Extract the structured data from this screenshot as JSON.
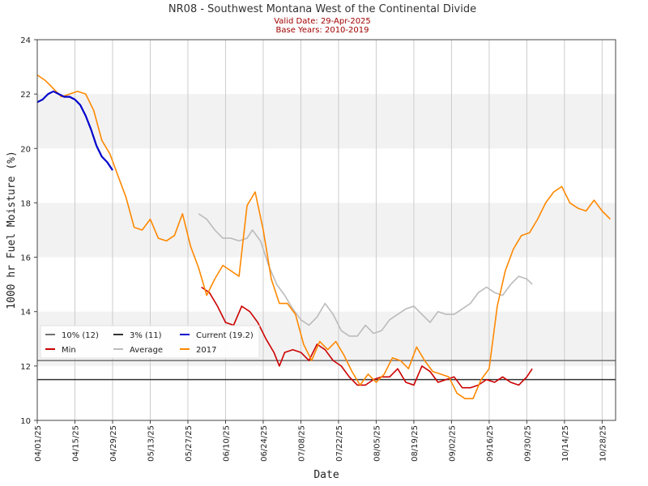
{
  "chart_data": {
    "type": "line",
    "title": "NR08 - Southwest Montana West of the Continental Divide",
    "subtitle_lines": [
      "Valid Date: 29-Apr-2025",
      "Base Years: 2010-2019"
    ],
    "xlabel": "Date",
    "ylabel": "1000 hr Fuel Moisture (%)",
    "xlim": [
      "2025-04-01",
      "2025-11-02"
    ],
    "ylim": [
      10,
      24
    ],
    "yticks": [
      10,
      12,
      14,
      16,
      18,
      20,
      22,
      24
    ],
    "xtick_labels": [
      "04/01/25",
      "04/15/25",
      "04/29/25",
      "05/13/25",
      "05/27/25",
      "06/10/25",
      "06/24/25",
      "07/08/25",
      "07/22/25",
      "08/05/25",
      "08/19/25",
      "09/02/25",
      "09/16/25",
      "09/30/25",
      "10/14/25",
      "10/28/25"
    ],
    "grid": true,
    "legend_position": "lower-left",
    "reference_lines": [
      {
        "name": "10% (12)",
        "value": 12.2,
        "color": "#707070"
      },
      {
        "name": "3% (11)",
        "value": 11.5,
        "color": "#333333"
      }
    ],
    "series": [
      {
        "name": "Current (19.2)",
        "color": "#0000cc",
        "points": [
          [
            "2025-04-01",
            21.7
          ],
          [
            "2025-04-03",
            21.8
          ],
          [
            "2025-04-05",
            22.0
          ],
          [
            "2025-04-07",
            22.1
          ],
          [
            "2025-04-09",
            22.0
          ],
          [
            "2025-04-11",
            21.9
          ],
          [
            "2025-04-13",
            21.9
          ],
          [
            "2025-04-15",
            21.8
          ],
          [
            "2025-04-17",
            21.6
          ],
          [
            "2025-04-19",
            21.2
          ],
          [
            "2025-04-21",
            20.7
          ],
          [
            "2025-04-23",
            20.1
          ],
          [
            "2025-04-25",
            19.7
          ],
          [
            "2025-04-27",
            19.5
          ],
          [
            "2025-04-29",
            19.2
          ]
        ]
      },
      {
        "name": "Min",
        "color": "#cc0000",
        "points": [
          [
            "2025-06-01",
            14.9
          ],
          [
            "2025-06-04",
            14.7
          ],
          [
            "2025-06-07",
            14.2
          ],
          [
            "2025-06-10",
            13.6
          ],
          [
            "2025-06-13",
            13.5
          ],
          [
            "2025-06-16",
            14.2
          ],
          [
            "2025-06-19",
            14.0
          ],
          [
            "2025-06-22",
            13.6
          ],
          [
            "2025-06-25",
            13.0
          ],
          [
            "2025-06-28",
            12.5
          ],
          [
            "2025-06-30",
            12.0
          ],
          [
            "2025-07-02",
            12.5
          ],
          [
            "2025-07-05",
            12.6
          ],
          [
            "2025-07-08",
            12.5
          ],
          [
            "2025-07-11",
            12.2
          ],
          [
            "2025-07-14",
            12.8
          ],
          [
            "2025-07-17",
            12.6
          ],
          [
            "2025-07-20",
            12.2
          ],
          [
            "2025-07-23",
            12.0
          ],
          [
            "2025-07-26",
            11.6
          ],
          [
            "2025-07-29",
            11.3
          ],
          [
            "2025-08-01",
            11.3
          ],
          [
            "2025-08-04",
            11.5
          ],
          [
            "2025-08-07",
            11.6
          ],
          [
            "2025-08-10",
            11.6
          ],
          [
            "2025-08-13",
            11.9
          ],
          [
            "2025-08-16",
            11.4
          ],
          [
            "2025-08-19",
            11.3
          ],
          [
            "2025-08-22",
            12.0
          ],
          [
            "2025-08-25",
            11.8
          ],
          [
            "2025-08-28",
            11.4
          ],
          [
            "2025-08-31",
            11.5
          ],
          [
            "2025-09-03",
            11.6
          ],
          [
            "2025-09-06",
            11.2
          ],
          [
            "2025-09-09",
            11.2
          ],
          [
            "2025-09-12",
            11.3
          ],
          [
            "2025-09-15",
            11.5
          ],
          [
            "2025-09-18",
            11.4
          ],
          [
            "2025-09-21",
            11.6
          ],
          [
            "2025-09-24",
            11.4
          ],
          [
            "2025-09-27",
            11.3
          ],
          [
            "2025-09-30",
            11.6
          ],
          [
            "2025-10-02",
            11.9
          ]
        ]
      },
      {
        "name": "Average",
        "color": "#bbbbbb",
        "points": [
          [
            "2025-05-31",
            17.6
          ],
          [
            "2025-06-03",
            17.4
          ],
          [
            "2025-06-06",
            17.0
          ],
          [
            "2025-06-09",
            16.7
          ],
          [
            "2025-06-12",
            16.7
          ],
          [
            "2025-06-15",
            16.6
          ],
          [
            "2025-06-18",
            16.7
          ],
          [
            "2025-06-20",
            17.0
          ],
          [
            "2025-06-23",
            16.6
          ],
          [
            "2025-06-26",
            15.7
          ],
          [
            "2025-06-29",
            15.0
          ],
          [
            "2025-07-02",
            14.6
          ],
          [
            "2025-07-05",
            14.1
          ],
          [
            "2025-07-08",
            13.7
          ],
          [
            "2025-07-11",
            13.5
          ],
          [
            "2025-07-14",
            13.8
          ],
          [
            "2025-07-17",
            14.3
          ],
          [
            "2025-07-20",
            13.9
          ],
          [
            "2025-07-23",
            13.3
          ],
          [
            "2025-07-26",
            13.1
          ],
          [
            "2025-07-29",
            13.1
          ],
          [
            "2025-08-01",
            13.5
          ],
          [
            "2025-08-04",
            13.2
          ],
          [
            "2025-08-07",
            13.3
          ],
          [
            "2025-08-10",
            13.7
          ],
          [
            "2025-08-13",
            13.9
          ],
          [
            "2025-08-16",
            14.1
          ],
          [
            "2025-08-19",
            14.2
          ],
          [
            "2025-08-22",
            13.9
          ],
          [
            "2025-08-25",
            13.6
          ],
          [
            "2025-08-28",
            14.0
          ],
          [
            "2025-08-31",
            13.9
          ],
          [
            "2025-09-03",
            13.9
          ],
          [
            "2025-09-06",
            14.1
          ],
          [
            "2025-09-09",
            14.3
          ],
          [
            "2025-09-12",
            14.7
          ],
          [
            "2025-09-15",
            14.9
          ],
          [
            "2025-09-18",
            14.7
          ],
          [
            "2025-09-21",
            14.6
          ],
          [
            "2025-09-24",
            15.0
          ],
          [
            "2025-09-27",
            15.3
          ],
          [
            "2025-09-30",
            15.2
          ],
          [
            "2025-10-02",
            15.0
          ]
        ]
      },
      {
        "name": "2017",
        "color": "#ff8800",
        "points": [
          [
            "2025-04-01",
            22.7
          ],
          [
            "2025-04-04",
            22.5
          ],
          [
            "2025-04-07",
            22.2
          ],
          [
            "2025-04-10",
            21.9
          ],
          [
            "2025-04-13",
            22.0
          ],
          [
            "2025-04-16",
            22.1
          ],
          [
            "2025-04-19",
            22.0
          ],
          [
            "2025-04-22",
            21.4
          ],
          [
            "2025-04-25",
            20.3
          ],
          [
            "2025-04-28",
            19.8
          ],
          [
            "2025-05-01",
            19.0
          ],
          [
            "2025-05-04",
            18.2
          ],
          [
            "2025-05-07",
            17.1
          ],
          [
            "2025-05-10",
            17.0
          ],
          [
            "2025-05-13",
            17.4
          ],
          [
            "2025-05-16",
            16.7
          ],
          [
            "2025-05-19",
            16.6
          ],
          [
            "2025-05-22",
            16.8
          ],
          [
            "2025-05-25",
            17.6
          ],
          [
            "2025-05-28",
            16.4
          ],
          [
            "2025-05-31",
            15.6
          ],
          [
            "2025-06-03",
            14.6
          ],
          [
            "2025-06-06",
            15.2
          ],
          [
            "2025-06-09",
            15.7
          ],
          [
            "2025-06-12",
            15.5
          ],
          [
            "2025-06-15",
            15.3
          ],
          [
            "2025-06-18",
            17.9
          ],
          [
            "2025-06-21",
            18.4
          ],
          [
            "2025-06-24",
            17.0
          ],
          [
            "2025-06-27",
            15.2
          ],
          [
            "2025-06-30",
            14.3
          ],
          [
            "2025-07-03",
            14.3
          ],
          [
            "2025-07-06",
            13.9
          ],
          [
            "2025-07-09",
            12.8
          ],
          [
            "2025-07-12",
            12.2
          ],
          [
            "2025-07-15",
            12.9
          ],
          [
            "2025-07-18",
            12.6
          ],
          [
            "2025-07-21",
            12.9
          ],
          [
            "2025-07-24",
            12.4
          ],
          [
            "2025-07-27",
            11.8
          ],
          [
            "2025-07-30",
            11.3
          ],
          [
            "2025-08-02",
            11.7
          ],
          [
            "2025-08-05",
            11.4
          ],
          [
            "2025-08-08",
            11.7
          ],
          [
            "2025-08-11",
            12.3
          ],
          [
            "2025-08-14",
            12.2
          ],
          [
            "2025-08-17",
            11.9
          ],
          [
            "2025-08-20",
            12.7
          ],
          [
            "2025-08-23",
            12.2
          ],
          [
            "2025-08-26",
            11.8
          ],
          [
            "2025-08-29",
            11.7
          ],
          [
            "2025-09-01",
            11.6
          ],
          [
            "2025-09-04",
            11.0
          ],
          [
            "2025-09-07",
            10.8
          ],
          [
            "2025-09-10",
            10.8
          ],
          [
            "2025-09-13",
            11.5
          ],
          [
            "2025-09-16",
            11.9
          ],
          [
            "2025-09-19",
            14.2
          ],
          [
            "2025-09-22",
            15.5
          ],
          [
            "2025-09-25",
            16.3
          ],
          [
            "2025-09-28",
            16.8
          ],
          [
            "2025-10-01",
            16.9
          ],
          [
            "2025-10-04",
            17.4
          ],
          [
            "2025-10-07",
            18.0
          ],
          [
            "2025-10-10",
            18.4
          ],
          [
            "2025-10-13",
            18.6
          ],
          [
            "2025-10-16",
            18.0
          ],
          [
            "2025-10-19",
            17.8
          ],
          [
            "2025-10-22",
            17.7
          ],
          [
            "2025-10-25",
            18.1
          ],
          [
            "2025-10-28",
            17.7
          ],
          [
            "2025-10-31",
            17.4
          ]
        ]
      }
    ],
    "legend": [
      {
        "label": "10% (12)",
        "color": "#707070"
      },
      {
        "label": "3% (11)",
        "color": "#333333"
      },
      {
        "label": "Current (19.2)",
        "color": "#0000cc"
      },
      {
        "label": "Min",
        "color": "#cc0000"
      },
      {
        "label": "Average",
        "color": "#bbbbbb"
      },
      {
        "label": "2017",
        "color": "#ff8800"
      }
    ]
  }
}
